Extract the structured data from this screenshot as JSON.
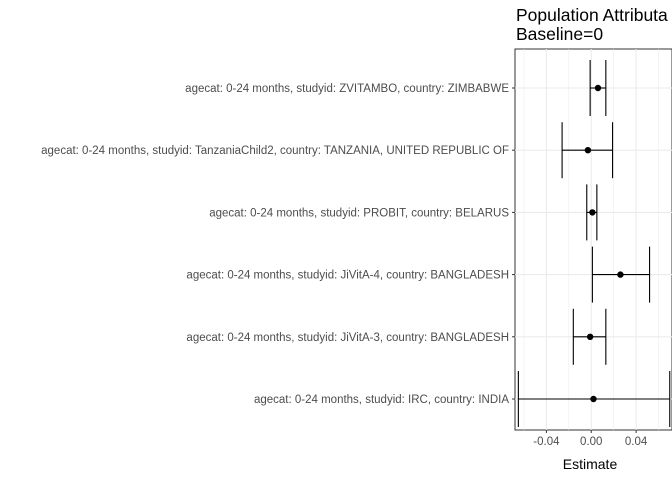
{
  "chart_data": {
    "type": "forest",
    "title_lines": [
      "Population Attributa",
      "Baseline=0"
    ],
    "xlabel": "Estimate",
    "xlim": [
      -0.068,
      0.072
    ],
    "xticks": [
      -0.04,
      0.0,
      0.04
    ],
    "xtick_labels": [
      "-0.04",
      "0.00",
      "0.04"
    ],
    "grid": true,
    "rows": [
      {
        "label": "agecat: 0-24 months, studyid: ZVITAMBO, country: ZIMBABWE",
        "estimate": 0.006,
        "lower": -0.001,
        "upper": 0.013
      },
      {
        "label": "agecat: 0-24 months, studyid: TanzaniaChild2, country: TANZANIA, UNITED REPUBLIC OF",
        "estimate": -0.003,
        "lower": -0.026,
        "upper": 0.019
      },
      {
        "label": "agecat: 0-24 months, studyid: PROBIT, country: BELARUS",
        "estimate": 0.001,
        "lower": -0.004,
        "upper": 0.005
      },
      {
        "label": "agecat: 0-24 months, studyid: JiVitA-4, country: BANGLADESH",
        "estimate": 0.026,
        "lower": 0.001,
        "upper": 0.052
      },
      {
        "label": "agecat: 0-24 months, studyid: JiVitA-3, country: BANGLADESH",
        "estimate": -0.001,
        "lower": -0.016,
        "upper": 0.013
      },
      {
        "label": "agecat: 0-24 months, studyid: IRC, country: INDIA",
        "estimate": 0.002,
        "lower": -0.065,
        "upper": 0.07
      }
    ]
  }
}
